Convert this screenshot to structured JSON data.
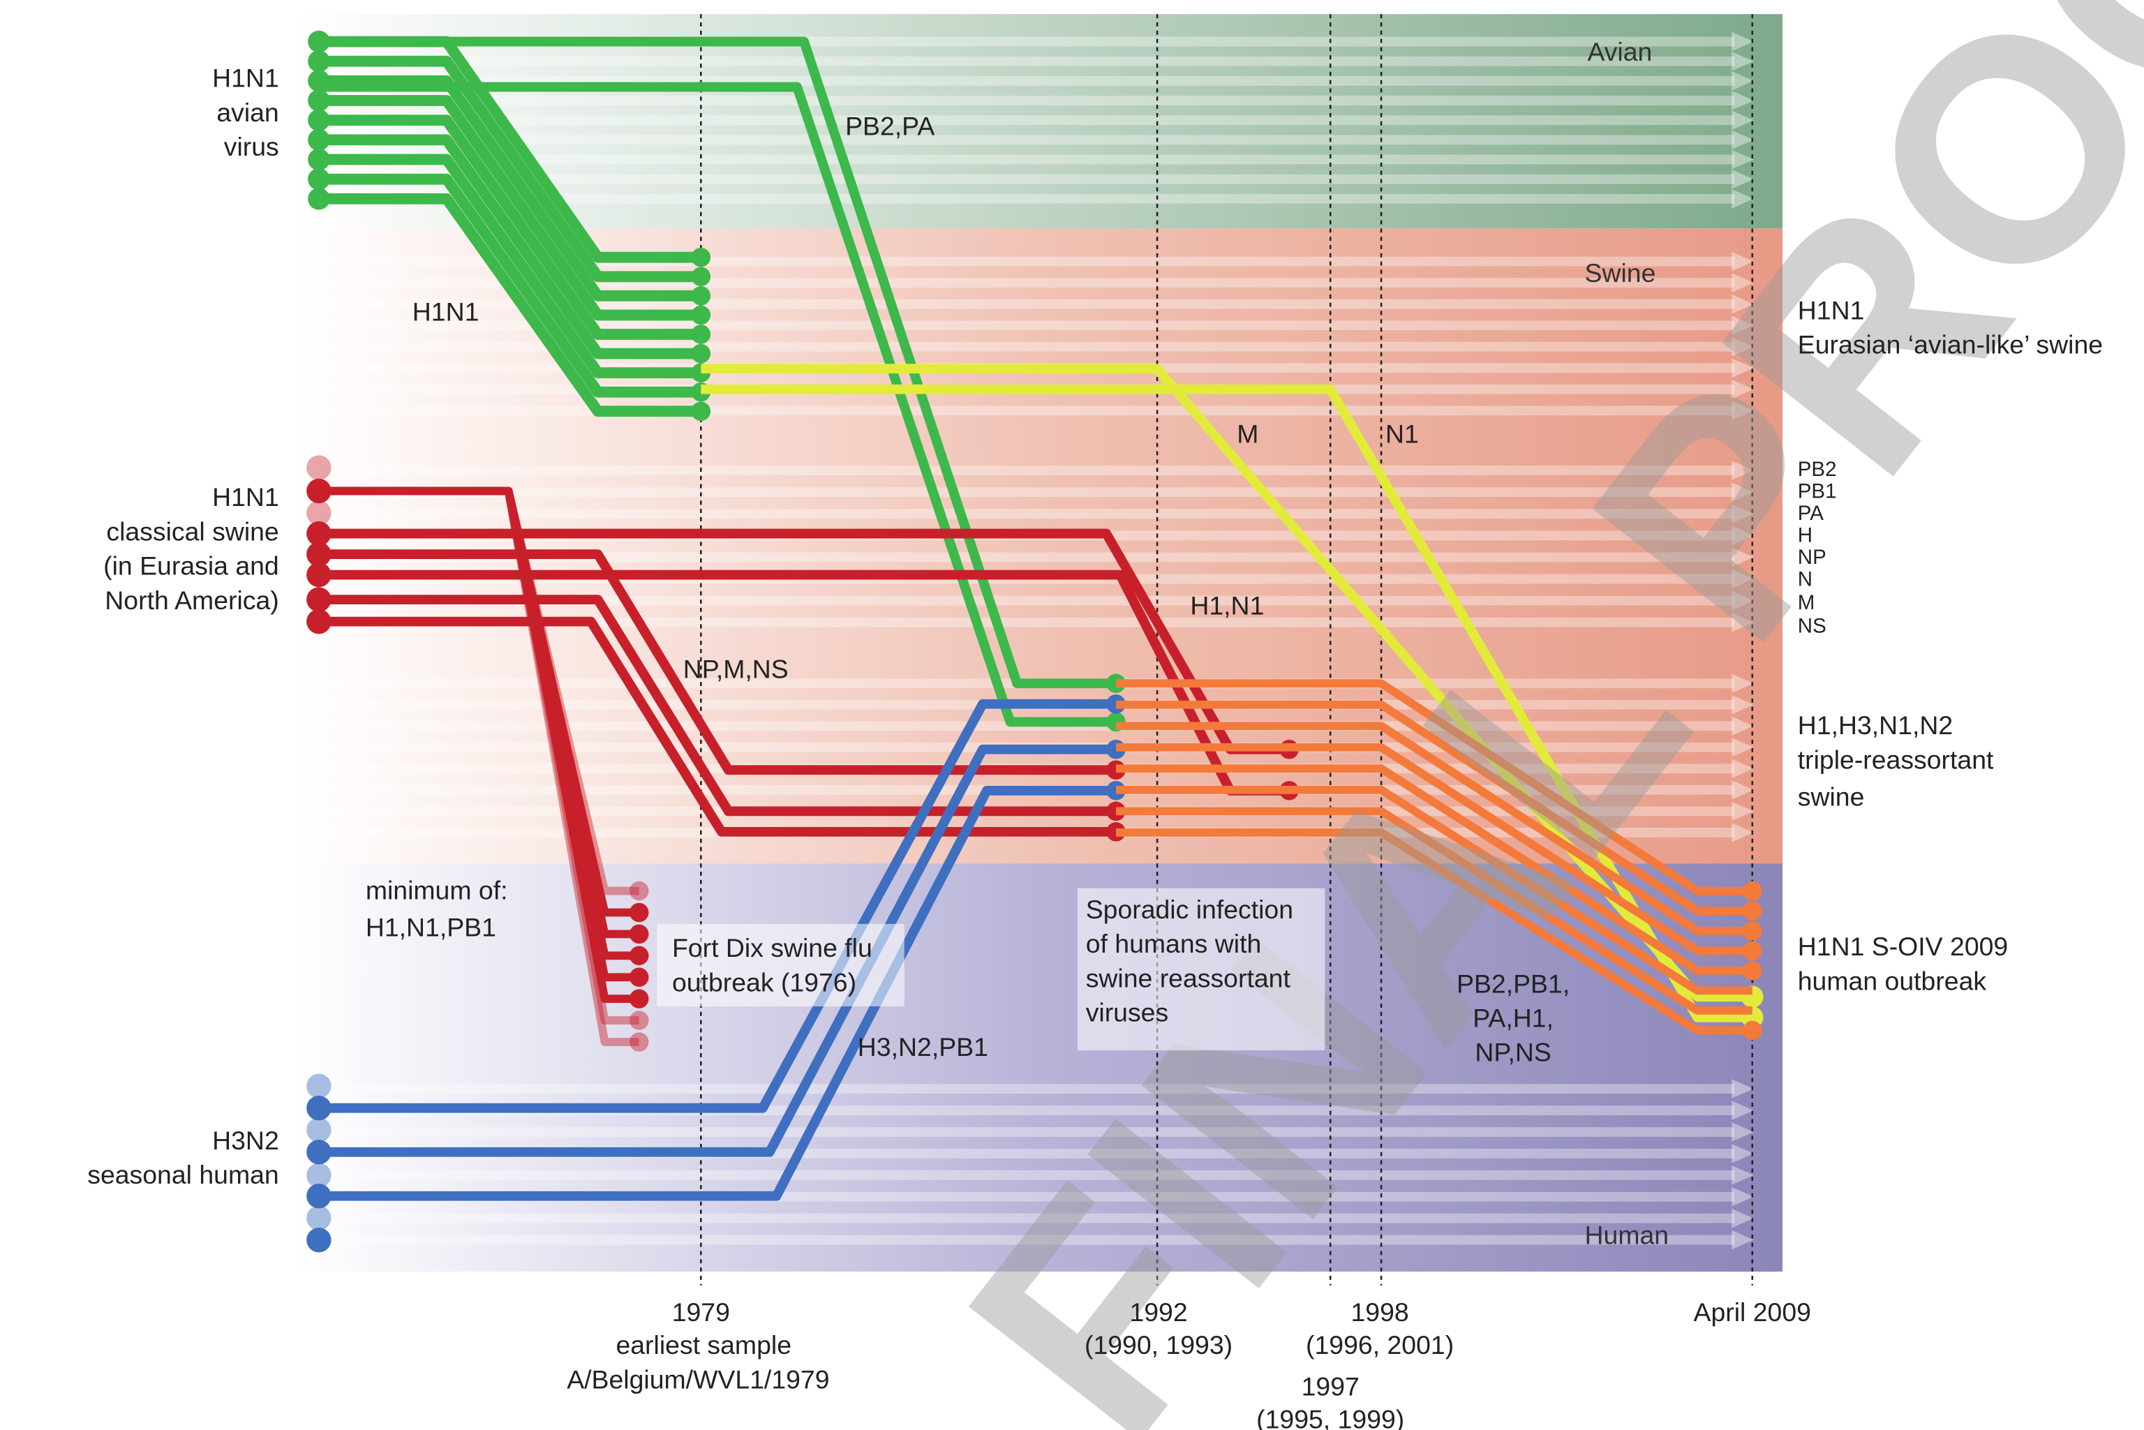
{
  "colors": {
    "avian_band": "#7fa98a",
    "swine_band": "#e79a86",
    "human_band": "#8b86b8",
    "avian_lineage": "#3db84a",
    "classical_swine_lineage": "#c8202a",
    "human_lineage": "#3f6fc0",
    "eurasian_swine_segments": "#e2ea3a",
    "triple_reassortant_segments": "#f37a3a"
  },
  "bands": {
    "avian": "Avian",
    "swine": "Swine",
    "human": "Human"
  },
  "left_labels": {
    "avian": [
      "H1N1",
      "avian",
      "virus"
    ],
    "classical": [
      "H1N1",
      "classical swine",
      "(in Eurasia and",
      "North America)"
    ],
    "human": [
      "H3N2",
      "seasonal human"
    ]
  },
  "inner_labels": {
    "h1n1_transfer": "H1N1",
    "pb2_pa": "PB2,PA",
    "m": "M",
    "n1": "N1",
    "h1_n1": "H1,N1",
    "np_m_ns": "NP,M,NS",
    "minimum_of": [
      "minimum of:",
      "H1,N1,PB1"
    ],
    "fort_dix": [
      "Fort Dix swine flu",
      "outbreak (1976)"
    ],
    "sporadic": [
      "Sporadic infection",
      "of humans with",
      "swine reassortant",
      "viruses"
    ],
    "h3_n2_pb1": "H3,N2,PB1",
    "soiv_segments": [
      "PB2,PB1,",
      "PA,H1,",
      "NP,NS"
    ]
  },
  "right_labels": {
    "eurasian": [
      "H1N1",
      "Eurasian ‘avian-like’ swine"
    ],
    "segments": [
      "PB2",
      "PB1",
      "PA",
      "H",
      "NP",
      "N",
      "M",
      "NS"
    ],
    "triple": [
      "H1,H3,N1,N2",
      "triple-reassortant",
      "swine"
    ],
    "soiv": [
      "H1N1 S-OIV 2009",
      "human outbreak"
    ]
  },
  "timeline": {
    "t1979": [
      "1979",
      "earliest sample",
      "A/Belgium/WVL1/1979"
    ],
    "t1992": [
      "1992",
      "(1990, 1993)"
    ],
    "t1998": [
      "1998",
      "(1996, 2001)"
    ],
    "t1997": [
      "1997",
      "(1995, 1999)"
    ],
    "t2009": [
      "April 2009"
    ]
  },
  "watermark": "FINAL PROOF"
}
